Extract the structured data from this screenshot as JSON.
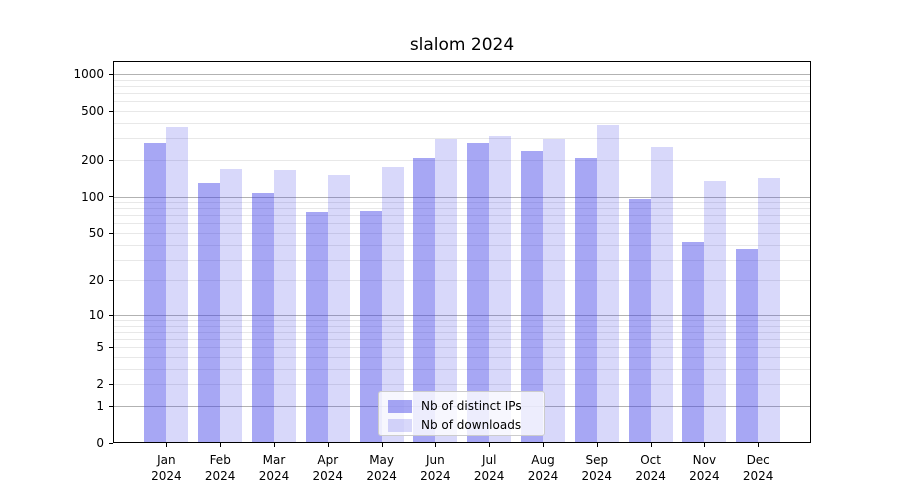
{
  "title": "slalom 2024",
  "chart_data": {
    "type": "bar",
    "title": "slalom 2024",
    "categories": [
      "Jan 2024",
      "Feb 2024",
      "Mar 2024",
      "Apr 2024",
      "May 2024",
      "Jun 2024",
      "Jul 2024",
      "Aug 2024",
      "Sep 2024",
      "Oct 2024",
      "Nov 2024",
      "Dec 2024"
    ],
    "months": [
      "Jan",
      "Feb",
      "Mar",
      "Apr",
      "May",
      "Jun",
      "Jul",
      "Aug",
      "Sep",
      "Oct",
      "Nov",
      "Dec"
    ],
    "year": "2024",
    "series": [
      {
        "name": "Nb of distinct IPs",
        "color": "rgba(60,60,230,0.45)",
        "values": [
          275,
          130,
          106,
          74,
          76,
          206,
          272,
          234,
          206,
          95,
          42,
          37
        ]
      },
      {
        "name": "Nb of downloads",
        "color": "rgba(60,60,230,0.2)",
        "values": [
          367,
          168,
          166,
          151,
          173,
          295,
          314,
          295,
          387,
          253,
          135,
          141
        ]
      }
    ],
    "xlabel": "",
    "ylabel": "",
    "y_scale": "log1p",
    "y_ticks": [
      0,
      1,
      2,
      5,
      10,
      20,
      50,
      100,
      200,
      500,
      1000
    ],
    "ylim": [
      0,
      1275
    ],
    "grid": true,
    "legend_position": "lower center"
  },
  "colors": {
    "bar_distinct_ips": "rgba(60,60,230,0.45)",
    "bar_downloads": "rgba(60,60,230,0.2)",
    "grid_major": "#b2b2b2",
    "grid_minor": "#e8e8e8",
    "frame": "#000000",
    "legend_border": "#cccccc",
    "legend_bg": "rgba(255,255,255,0.8)",
    "text": "#000000"
  }
}
